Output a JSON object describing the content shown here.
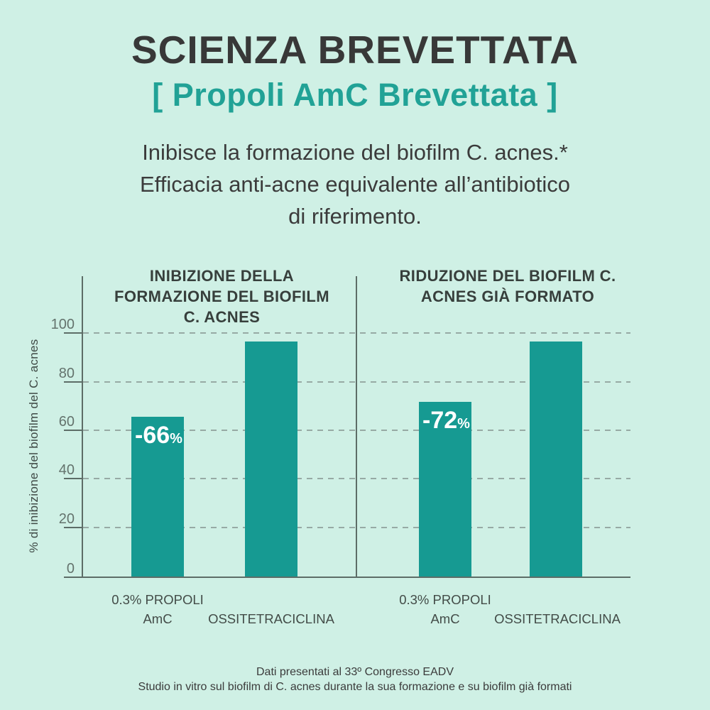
{
  "header": {
    "title": "SCIENZA BREVETTATA",
    "subtitle": "[ Propoli AmC Brevettata ]",
    "description_lines": [
      "Inibisce la formazione del biofilm C. acnes.*",
      "Efficacia anti-acne equivalente all’antibiotico",
      "di riferimento."
    ]
  },
  "chart_data": [
    {
      "type": "bar",
      "title": "INIBIZIONE DELLA FORMAZIONE DEL BIOFILM C. ACNES",
      "title_lines": [
        "INIBIZIONE DELLA",
        "FORMAZIONE DEL BIOFILM",
        "C. ACNES"
      ],
      "categories": [
        [
          "0.3% PROPOLI",
          "AmC"
        ],
        [
          "OSSITETRACICLINA"
        ]
      ],
      "values": [
        66,
        97
      ],
      "bar_label": {
        "main": "-66",
        "suffix": "%"
      },
      "ylabel": "% di inibizione del biofilm del C. acnes",
      "ylim": [
        0,
        100
      ],
      "yticks": [
        0,
        20,
        40,
        60,
        80,
        100
      ],
      "grid": "dashed-horizontal",
      "legend": "none",
      "bar_color": "#169a92"
    },
    {
      "type": "bar",
      "title": "RIDUZIONE DEL BIOFILM C. ACNES GIÀ FORMATO",
      "title_lines": [
        "RIDUZIONE DEL BIOFILM C.",
        "ACNES GIÀ FORMATO"
      ],
      "categories": [
        [
          "0.3% PROPOLI",
          "AmC"
        ],
        [
          "OSSITETRACICLINA"
        ]
      ],
      "values": [
        72,
        97
      ],
      "bar_label": {
        "main": "-72",
        "suffix": "%"
      },
      "ylabel": "% di inibizione del biofilm del C. acnes",
      "ylim": [
        0,
        100
      ],
      "yticks": [
        0,
        20,
        40,
        60,
        80,
        100
      ],
      "grid": "dashed-horizontal",
      "legend": "none",
      "bar_color": "#169a92"
    }
  ],
  "footer": {
    "lines": [
      "Dati presentati al 33º Congresso EADV",
      "Studio in vitro sul biofilm di C. acnes durante la sua formazione e su biofilm già formati"
    ]
  },
  "colors": {
    "background": "#cff0e5",
    "bar": "#169a92",
    "accent_teal": "#21a296",
    "text_dark": "#3b3b3b",
    "axis_line": "#5d6d67",
    "gridline": "#97aaa4",
    "bar_label_text": "#ffffff"
  }
}
